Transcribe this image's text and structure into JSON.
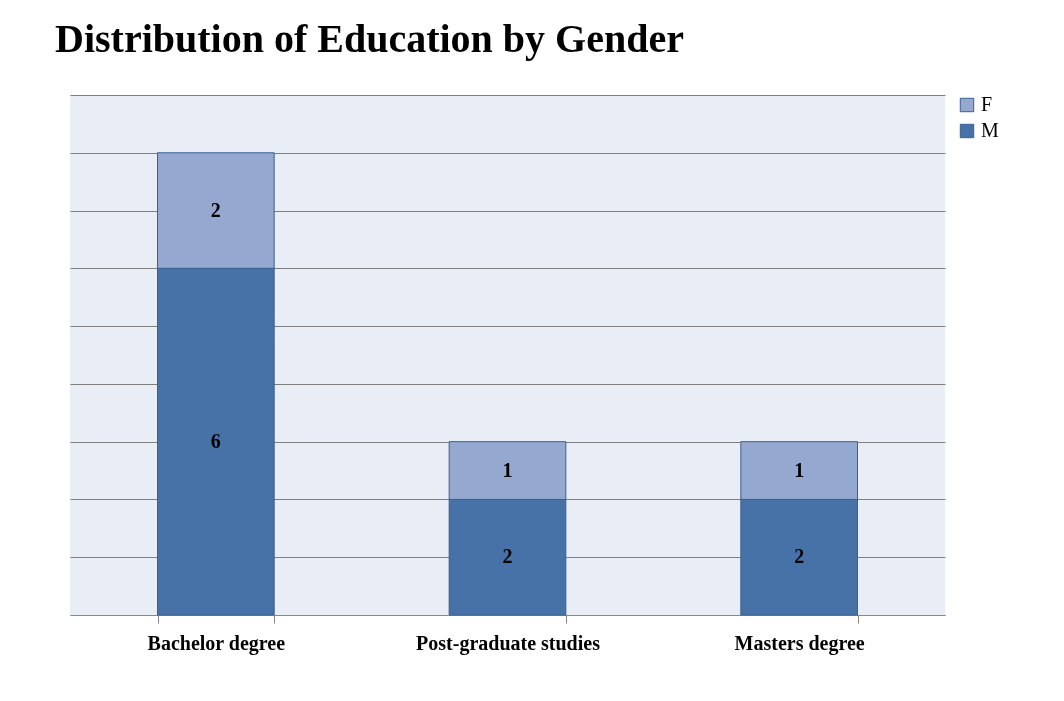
{
  "chart_data": {
    "type": "bar",
    "title": "Distribution of Education by Gender",
    "categories": [
      "Bachelor degree",
      "Post-graduate studies",
      "Masters degree"
    ],
    "stacked": true,
    "series": [
      {
        "name": "M",
        "color": "#4672a8",
        "values": [
          6,
          2,
          2
        ]
      },
      {
        "name": "F",
        "color": "#95a9d0",
        "values": [
          2,
          1,
          1
        ]
      }
    ],
    "ylim": [
      0,
      9
    ],
    "yticks": [
      {
        "value": 0,
        "label": null
      },
      {
        "value": 1,
        "label": null
      },
      {
        "value": 2,
        "label": null
      },
      {
        "value": 3,
        "label": null
      },
      {
        "value": 4,
        "label": null
      },
      {
        "value": 5,
        "label": null
      },
      {
        "value": 6,
        "label": null
      },
      {
        "value": 7,
        "label": null
      },
      {
        "value": 8,
        "label": null
      },
      {
        "value": 9,
        "label": null
      }
    ],
    "grid": "y",
    "legend": "right",
    "data_labels": true
  }
}
